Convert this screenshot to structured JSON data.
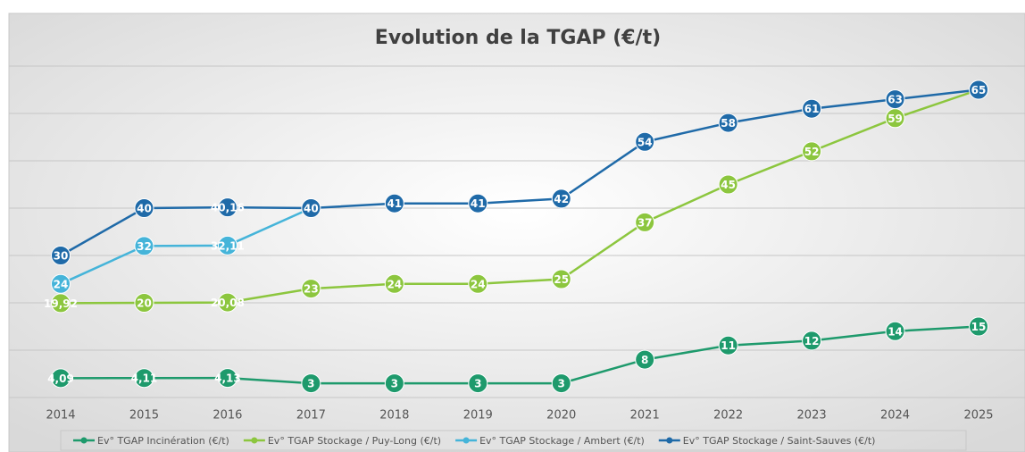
{
  "chart_data": {
    "type": "line",
    "title": "Evolution de la TGAP (€/t)",
    "categories": [
      "2014",
      "2015",
      "2016",
      "2017",
      "2018",
      "2019",
      "2020",
      "2021",
      "2022",
      "2023",
      "2024",
      "2025"
    ],
    "ylim": [
      0,
      70
    ],
    "yticks": [
      0,
      10,
      20,
      30,
      40,
      50,
      60,
      70
    ],
    "grid": true,
    "legend": "bottom",
    "series": [
      {
        "name": "Ev° TGAP Incinération (€/t)",
        "color": "#1e9a6c",
        "values": [
          4.09,
          4.11,
          4.13,
          3,
          3,
          3,
          3,
          8,
          11,
          12,
          14,
          15
        ],
        "value_labels": [
          "4,09",
          "4,11",
          "4,13",
          "3",
          "3",
          "3",
          "3",
          "8",
          "11",
          "12",
          "14",
          "15"
        ]
      },
      {
        "name": "Ev° TGAP Stockage / Puy-Long (€/t)",
        "color": "#8cc63e",
        "values": [
          19.92,
          20,
          20.08,
          23,
          24,
          24,
          25,
          37,
          45,
          52,
          59,
          65
        ],
        "value_labels": [
          "19,92",
          "20",
          "20,08",
          "23",
          "24",
          "24",
          "25",
          "37",
          "45",
          "52",
          "59",
          "65"
        ]
      },
      {
        "name": "Ev° TGAP Stockage / Ambert (€/t)",
        "color": "#45b4d9",
        "values": [
          24,
          32,
          32.11,
          40,
          null,
          null,
          null,
          null,
          null,
          null,
          null,
          null
        ],
        "value_labels": [
          "24",
          "32",
          "32,11",
          "40",
          null,
          null,
          null,
          null,
          null,
          null,
          null,
          null
        ]
      },
      {
        "name": "Ev° TGAP Stockage / Saint-Sauves (€/t)",
        "color": "#1f6aa8",
        "values": [
          30,
          40,
          40.16,
          40,
          41,
          41,
          42,
          54,
          58,
          61,
          63,
          65
        ],
        "value_labels": [
          "30",
          "40",
          "40,16",
          "40",
          "41",
          "41",
          "42",
          "54",
          "58",
          "61",
          "63",
          "65"
        ]
      }
    ]
  }
}
